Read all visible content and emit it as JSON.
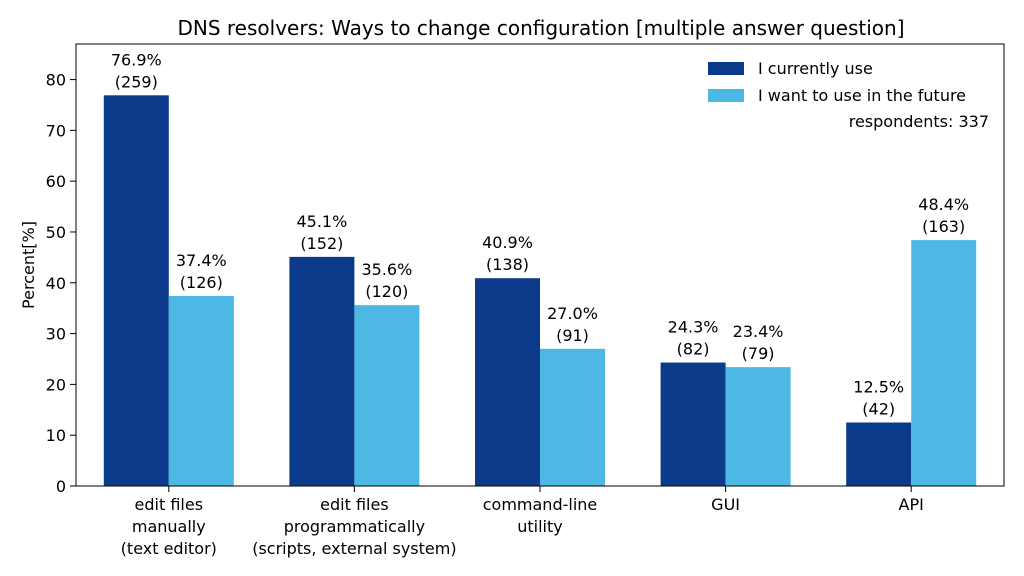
{
  "chart_data": {
    "type": "bar",
    "title": "DNS resolvers: Ways to change configuration [multiple answer question]",
    "xlabel": "",
    "ylabel": "Percent[%]",
    "ylim": [
      0,
      87
    ],
    "yticks": [
      0,
      10,
      20,
      30,
      40,
      50,
      60,
      70,
      80
    ],
    "categories": [
      [
        "edit files",
        "manually",
        "(text editor)"
      ],
      [
        "edit files",
        "programmatically",
        "(scripts, external system)"
      ],
      [
        "command-line",
        "utility"
      ],
      [
        "GUI"
      ],
      [
        "API"
      ]
    ],
    "series": [
      {
        "name": "I currently use",
        "color": "#0c3b8c",
        "values": [
          76.9,
          45.1,
          40.9,
          24.3,
          12.5
        ],
        "counts": [
          "(259)",
          "(152)",
          "(138)",
          "(82)",
          "(42)"
        ],
        "labels": [
          "76.9%",
          "45.1%",
          "40.9%",
          "24.3%",
          "12.5%"
        ]
      },
      {
        "name": "I want to use in the future",
        "color": "#4db8e3",
        "values": [
          37.4,
          35.6,
          27.0,
          23.4,
          48.4
        ],
        "counts": [
          "(126)",
          "(120)",
          "(91)",
          "(79)",
          "(163)"
        ],
        "labels": [
          "37.4%",
          "35.6%",
          "27.0%",
          "23.4%",
          "48.4%"
        ]
      }
    ],
    "legend": {
      "placement": "top-right",
      "note": "respondents: 337"
    },
    "grid": false
  }
}
